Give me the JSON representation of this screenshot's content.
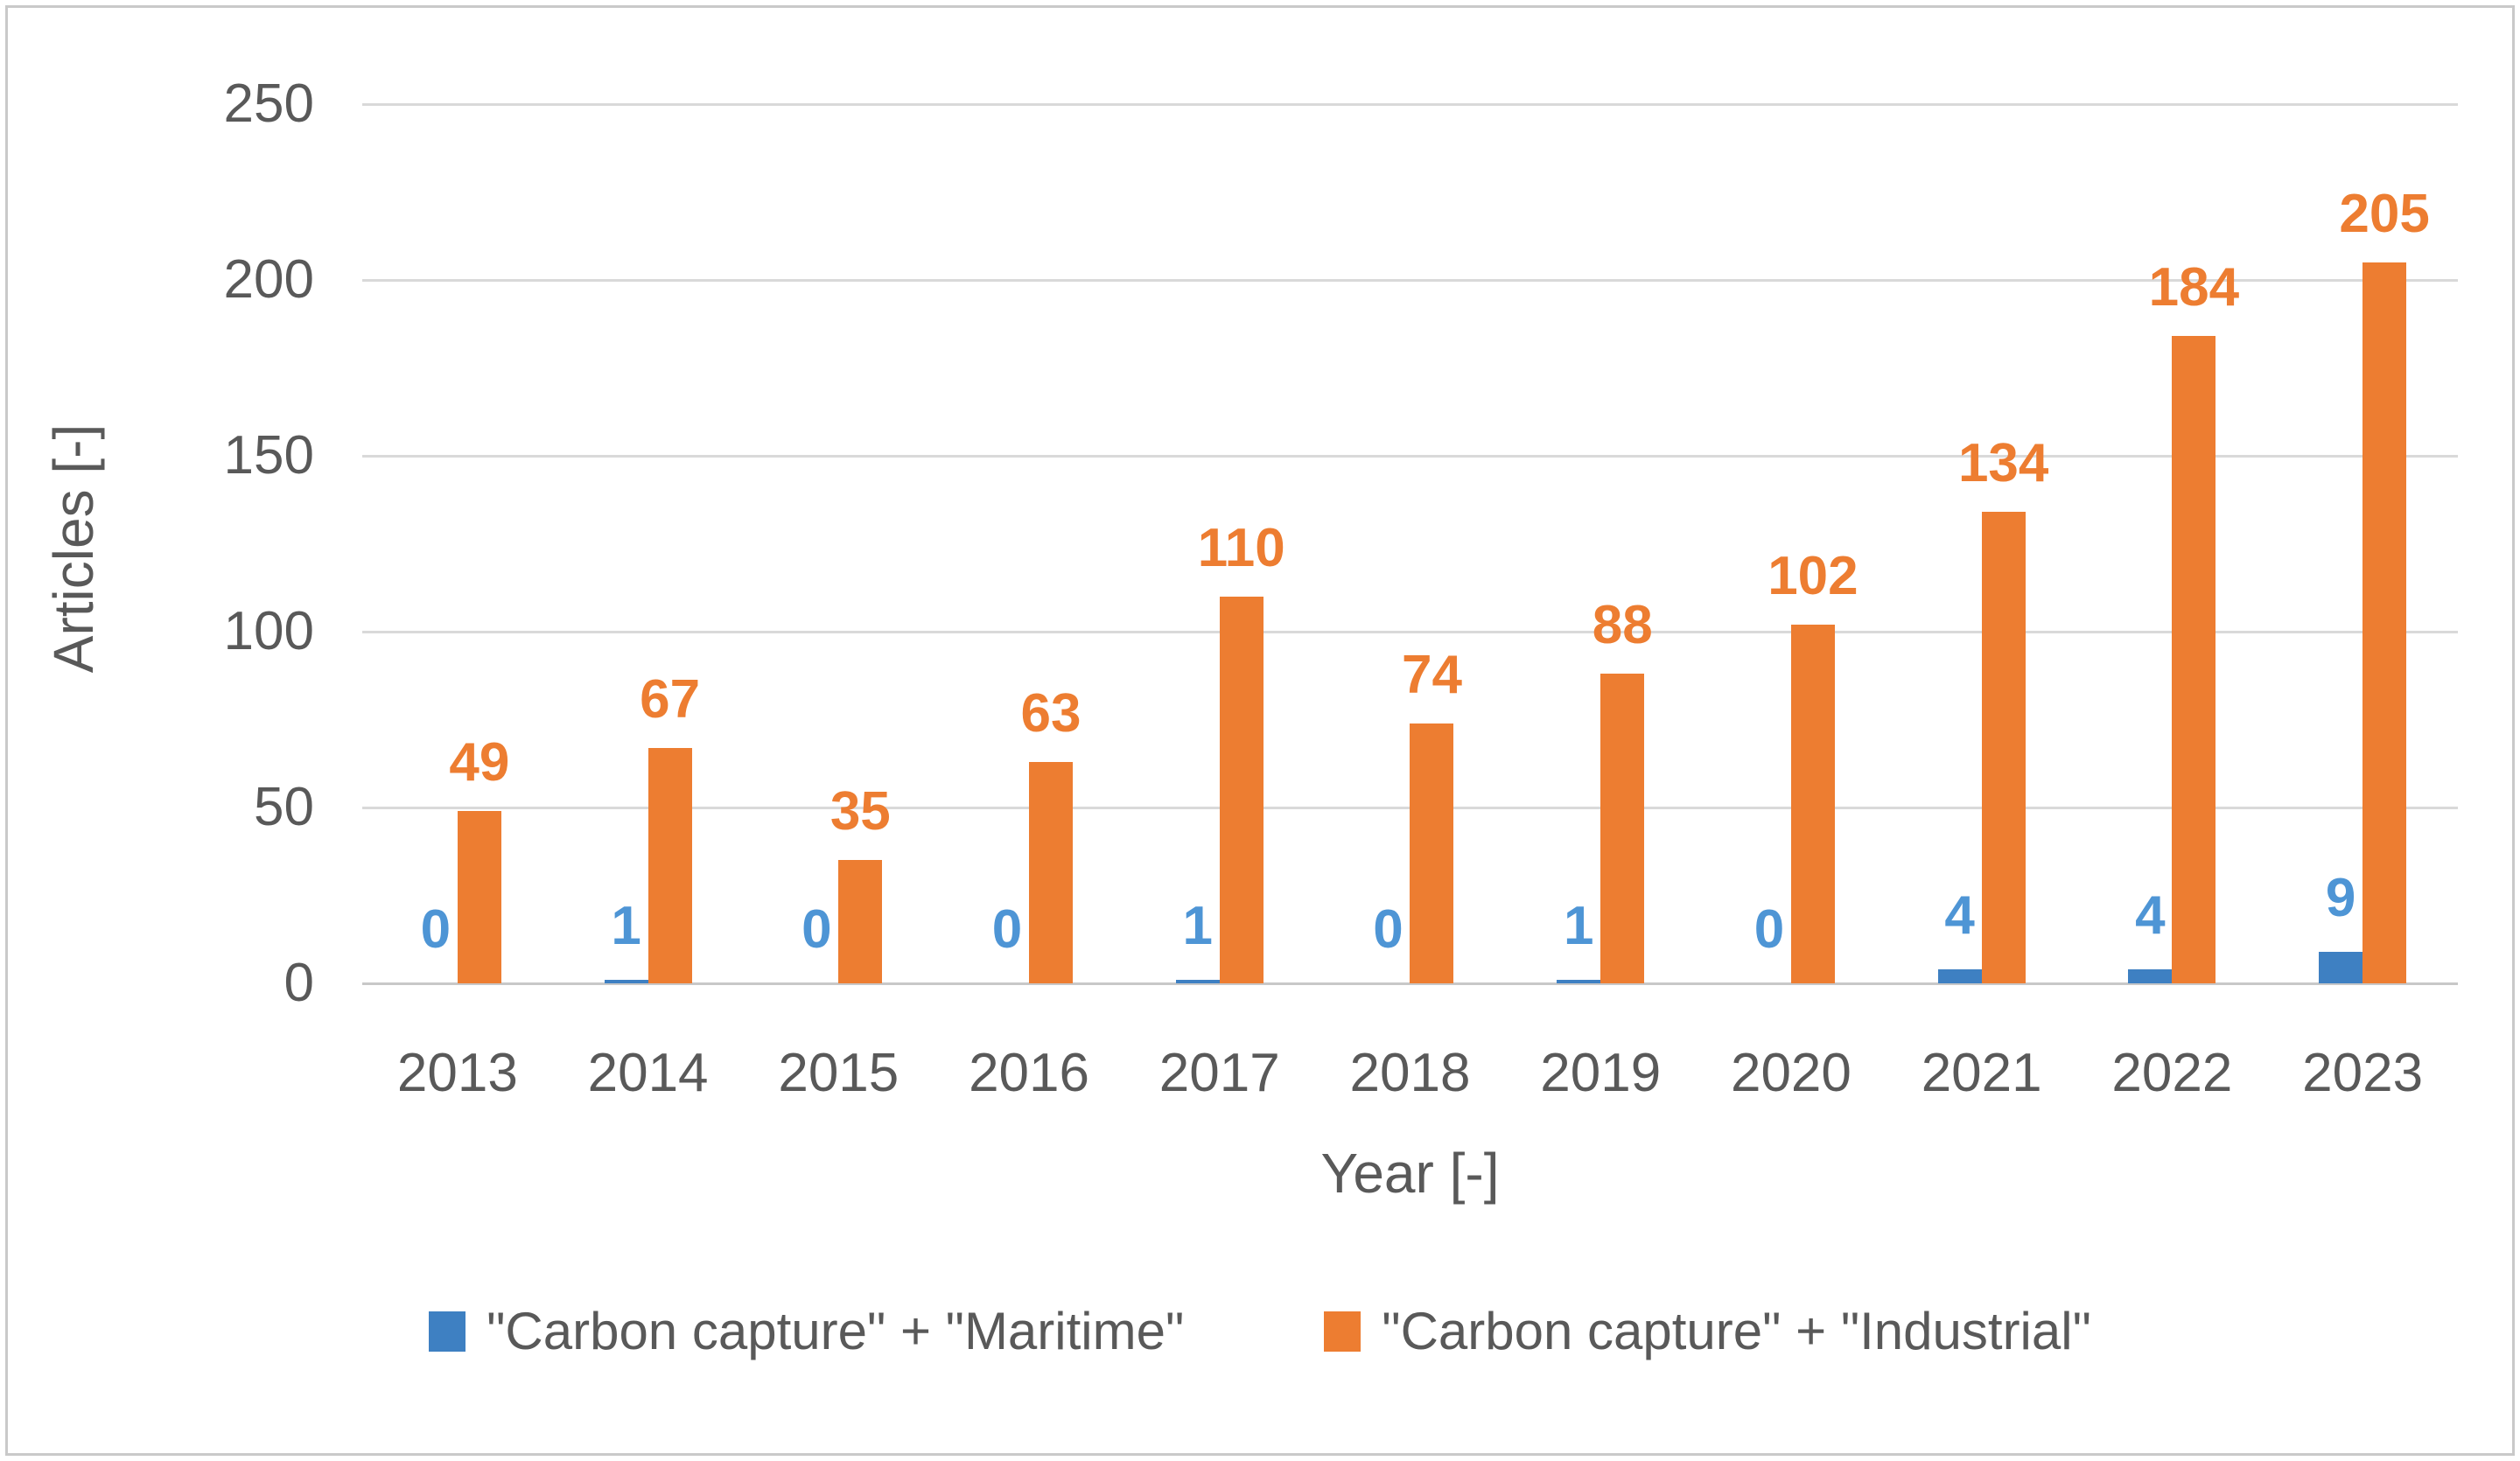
{
  "chart_data": {
    "type": "bar",
    "title": "",
    "categories": [
      "2013",
      "2014",
      "2015",
      "2016",
      "2017",
      "2018",
      "2019",
      "2020",
      "2021",
      "2022",
      "2023"
    ],
    "series": [
      {
        "name": "\"Carbon capture\" + \"Maritime\"",
        "values": [
          0,
          1,
          0,
          0,
          1,
          0,
          1,
          0,
          4,
          4,
          9
        ],
        "color": "#3E80C2",
        "label_color": "#4E95D5"
      },
      {
        "name": "\"Carbon capture\" + \"Industrial\"",
        "values": [
          49,
          67,
          35,
          63,
          110,
          74,
          88,
          102,
          134,
          184,
          205
        ],
        "color": "#ED7D31",
        "label_color": "#ED7D31"
      }
    ],
    "xlabel": "Year [-]",
    "ylabel": "Articles [-]",
    "ylim": [
      0,
      250
    ],
    "y_ticks": [
      0,
      50,
      100,
      150,
      200,
      250
    ],
    "grid": true,
    "legend_position": "bottom",
    "data_labels": true
  },
  "style": {
    "axis_text_color": "#595959",
    "gridline_color": "#D9D9D9",
    "baseline_color": "#C8C8C8",
    "frame_border_color": "#C9C9C9",
    "background_color": "#FFFFFF"
  }
}
